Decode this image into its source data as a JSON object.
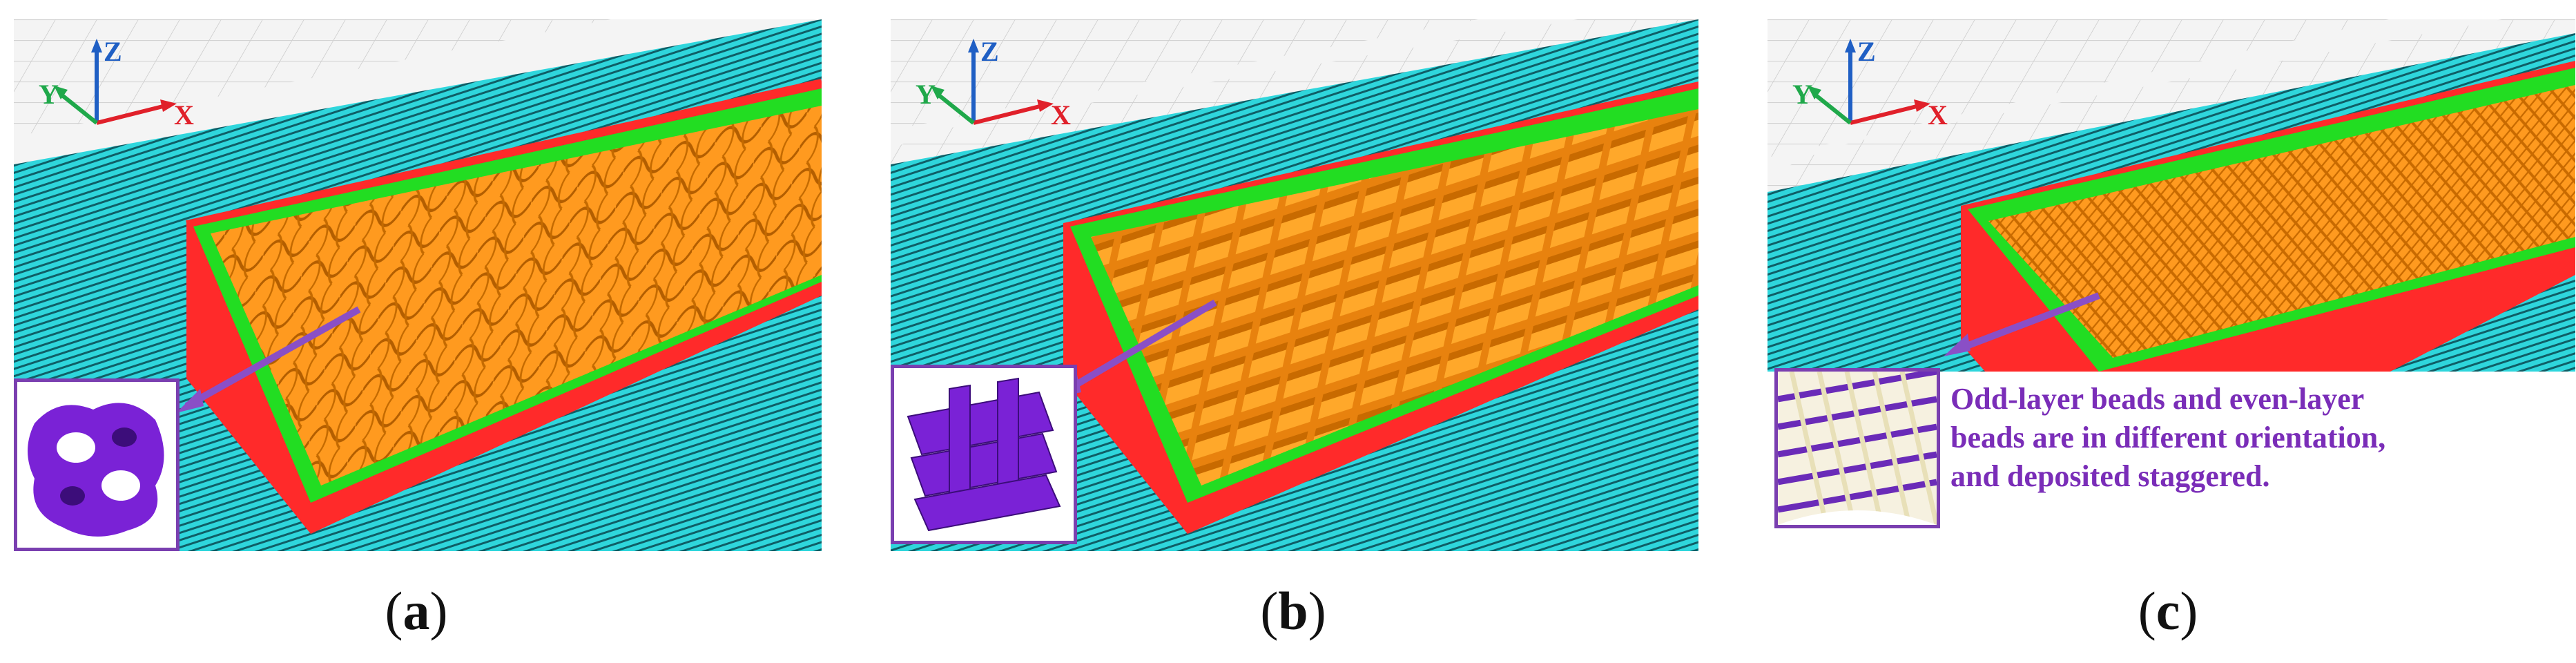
{
  "panels": [
    {
      "id": "a",
      "caption_letter": "a",
      "infill": "gyroid"
    },
    {
      "id": "b",
      "caption_letter": "b",
      "infill": "grid"
    },
    {
      "id": "c",
      "caption_letter": "c",
      "infill": "staggered-lines",
      "annotation": [
        "Odd-layer beads and even-layer",
        "beads are in different orientation,",
        "and deposited staggered."
      ]
    }
  ],
  "axes": {
    "x": "X",
    "y": "Y",
    "z": "Z"
  },
  "colors": {
    "skirt": "#2fd6dc",
    "infill": "#ff9a1f",
    "wall": "#ff2a2a",
    "top_edge": "#22dd22",
    "inset_shape": "#7a22d6",
    "arrow": "#8a4fc6",
    "annotation": "#7a2db8",
    "axis_x": "#e0202a",
    "axis_y": "#1fa84a",
    "axis_z": "#1f5fc4"
  },
  "captions": {
    "open": "(",
    "close": ")"
  }
}
